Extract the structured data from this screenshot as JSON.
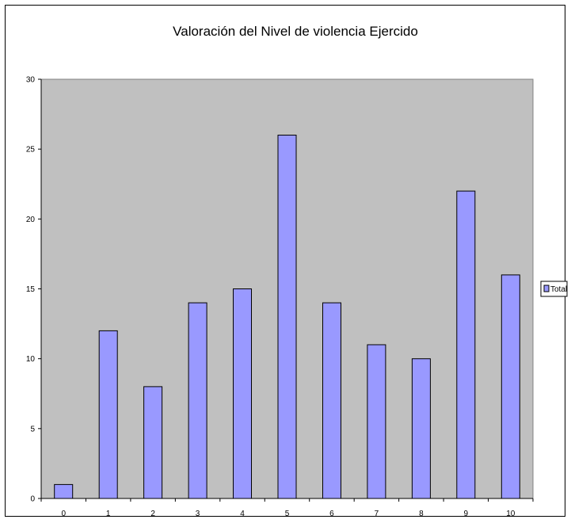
{
  "colors": {
    "plot_area": "#c0c0c0",
    "bar_fill": "#9999ff",
    "bar_stroke": "#000000",
    "axis": "#000000"
  },
  "chart_data": {
    "type": "bar",
    "title": "Valoración del Nivel de violencia Ejercido",
    "xlabel": "",
    "ylabel": "",
    "categories": [
      "0",
      "1",
      "2",
      "3",
      "4",
      "5",
      "6",
      "7",
      "8",
      "9",
      "10"
    ],
    "series": [
      {
        "name": "Total",
        "values": [
          1,
          12,
          8,
          14,
          15,
          26,
          14,
          11,
          10,
          22,
          16
        ]
      }
    ],
    "ylim": [
      0,
      30
    ],
    "yticks": [
      0,
      5,
      10,
      15,
      20,
      25,
      30
    ],
    "grid": false,
    "legend": "right"
  }
}
